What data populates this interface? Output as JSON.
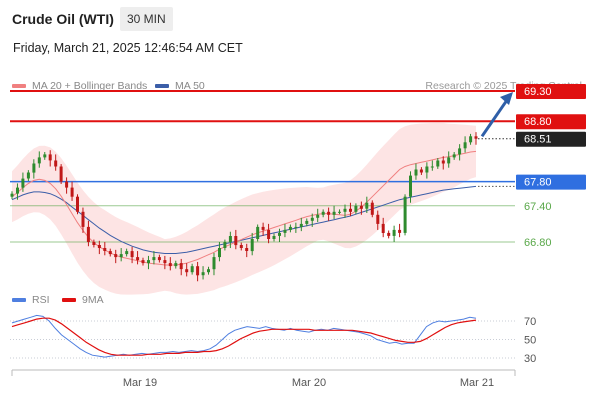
{
  "header": {
    "title": "Crude Oil (WTI)",
    "timeframe": "30 MIN",
    "datetime": "Friday, March 21, 2025 12:46:54 AM CET"
  },
  "legend": {
    "ma20_label": "MA 20 + Bollinger Bands",
    "ma50_label": "MA 50",
    "copyright": "Research © 2025 Trading Central",
    "ma20_color": "#f08080",
    "ma50_color": "#3b5ea8"
  },
  "rsi_legend": {
    "rsi_label": "RSI",
    "ma_label": "9MA",
    "rsi_color": "#4f7fe0",
    "ma_color": "#e01010"
  },
  "colors": {
    "up_candle": "#2e8b2e",
    "down_candle": "#c01818",
    "resistance": "#e01010",
    "pivot": "#2f6fe0",
    "support": "#5aa84a",
    "bb_fill": "#fde4e4",
    "arrow": "#2f5fa8"
  },
  "chart_data": [
    {
      "type": "candlestick",
      "x_labels": [
        "Mar 19",
        "Mar 20",
        "Mar 21"
      ],
      "levels": [
        {
          "label": "69.30",
          "value": 69.3,
          "kind": "resistance"
        },
        {
          "label": "68.80",
          "value": 68.8,
          "kind": "resistance"
        },
        {
          "label": "68.51",
          "value": 68.51,
          "kind": "current"
        },
        {
          "label": "67.80",
          "value": 67.8,
          "kind": "pivot"
        },
        {
          "label": "67.40",
          "value": 67.4,
          "kind": "support"
        },
        {
          "label": "66.80",
          "value": 66.8,
          "kind": "support"
        }
      ],
      "close": [
        67.6,
        67.7,
        67.85,
        67.95,
        68.1,
        68.2,
        68.25,
        68.15,
        68.05,
        67.8,
        67.7,
        67.55,
        67.3,
        67.05,
        66.8,
        66.75,
        66.7,
        66.65,
        66.6,
        66.55,
        66.6,
        66.65,
        66.55,
        66.5,
        66.45,
        66.5,
        66.55,
        66.5,
        66.45,
        66.4,
        66.45,
        66.35,
        66.3,
        66.4,
        66.25,
        66.3,
        66.35,
        66.55,
        66.7,
        66.8,
        66.9,
        66.75,
        66.7,
        66.65,
        66.85,
        67.05,
        67.0,
        66.85,
        66.9,
        66.95,
        67.0,
        67.05,
        67.05,
        67.1,
        67.15,
        67.2,
        67.25,
        67.3,
        67.25,
        67.3,
        67.3,
        67.35,
        67.3,
        67.4,
        67.35,
        67.45,
        67.25,
        67.1,
        66.95,
        66.9,
        67.0,
        66.95,
        67.55,
        67.9,
        68.0,
        67.95,
        68.05,
        68.05,
        68.15,
        68.1,
        68.2,
        68.25,
        68.35,
        68.45,
        68.55,
        68.51
      ],
      "ma20": [
        67.55,
        67.62,
        67.7,
        67.77,
        67.82,
        67.84,
        67.82,
        67.77,
        67.68,
        67.56,
        67.42,
        67.27,
        67.12,
        66.99,
        66.88,
        66.79,
        66.72,
        66.67,
        66.62,
        66.58,
        66.55,
        66.53,
        66.51,
        66.49,
        66.47,
        66.45,
        66.44,
        66.43,
        66.42,
        66.42,
        66.42,
        66.43,
        66.45,
        66.48,
        66.51,
        66.55,
        66.59,
        66.63,
        66.68,
        66.72,
        66.76,
        66.8,
        66.84,
        66.88,
        66.92,
        66.95,
        66.98,
        67.01,
        67.04,
        67.07,
        67.1,
        67.13,
        67.16,
        67.19,
        67.22,
        67.24,
        67.26,
        67.27,
        67.27,
        67.26,
        67.25,
        67.24,
        67.26,
        67.31,
        67.38,
        67.46,
        67.55,
        67.64,
        67.73,
        67.82,
        67.91,
        68.0,
        68.05,
        68.08,
        68.1,
        68.12,
        68.14,
        68.16,
        68.18,
        68.2,
        68.21,
        68.23,
        68.25,
        68.27,
        68.29,
        68.3
      ],
      "ma50": [
        67.5,
        67.54,
        67.58,
        67.61,
        67.63,
        67.63,
        67.62,
        67.6,
        67.56,
        67.51,
        67.45,
        67.38,
        67.31,
        67.24,
        67.17,
        67.1,
        67.03,
        66.97,
        66.91,
        66.86,
        66.81,
        66.77,
        66.73,
        66.7,
        66.67,
        66.65,
        66.63,
        66.62,
        66.61,
        66.61,
        66.61,
        66.62,
        66.63,
        66.65,
        66.67,
        66.69,
        66.71,
        66.73,
        66.75,
        66.77,
        66.79,
        66.81,
        66.83,
        66.85,
        66.87,
        66.89,
        66.91,
        66.93,
        66.95,
        66.97,
        66.99,
        67.01,
        67.03,
        67.05,
        67.07,
        67.09,
        67.11,
        67.13,
        67.15,
        67.17,
        67.19,
        67.21,
        67.23,
        67.26,
        67.29,
        67.32,
        67.35,
        67.38,
        67.41,
        67.44,
        67.47,
        67.5,
        67.52,
        67.54,
        67.56,
        67.58,
        67.6,
        67.62,
        67.64,
        67.66,
        67.67,
        67.68,
        67.69,
        67.7,
        67.71,
        67.72
      ]
    },
    {
      "type": "line",
      "name": "RSI",
      "y_ticks": [
        70,
        50,
        30
      ],
      "ylim": [
        20,
        80
      ],
      "rsi": [
        68,
        70,
        72,
        74,
        76,
        75,
        70,
        62,
        55,
        50,
        45,
        40,
        36,
        33,
        32,
        31,
        32,
        33,
        34,
        33,
        34,
        35,
        34,
        35,
        36,
        36,
        37,
        36,
        37,
        38,
        37,
        38,
        40,
        44,
        50,
        56,
        60,
        62,
        64,
        63,
        62,
        64,
        62,
        61,
        60,
        62,
        60,
        59,
        58,
        60,
        61,
        60,
        62,
        61,
        60,
        59,
        58,
        56,
        54,
        50,
        48,
        46,
        47,
        45,
        46,
        46,
        55,
        64,
        68,
        70,
        69,
        70,
        71,
        72,
        74,
        73
      ],
      "ma9": [
        64,
        66,
        68,
        70,
        72,
        73,
        73,
        71,
        67,
        62,
        57,
        52,
        47,
        43,
        39,
        36,
        34,
        33,
        33,
        33,
        33,
        33,
        34,
        34,
        34,
        35,
        35,
        35,
        36,
        36,
        36,
        37,
        37,
        38,
        40,
        43,
        47,
        51,
        54,
        57,
        59,
        60,
        61,
        61,
        61,
        61,
        61,
        61,
        61,
        60,
        60,
        60,
        60,
        60,
        60,
        60,
        59,
        58,
        57,
        55,
        53,
        51,
        49,
        48,
        47,
        47,
        48,
        51,
        55,
        59,
        63,
        66,
        68,
        69,
        70,
        71
      ]
    }
  ]
}
